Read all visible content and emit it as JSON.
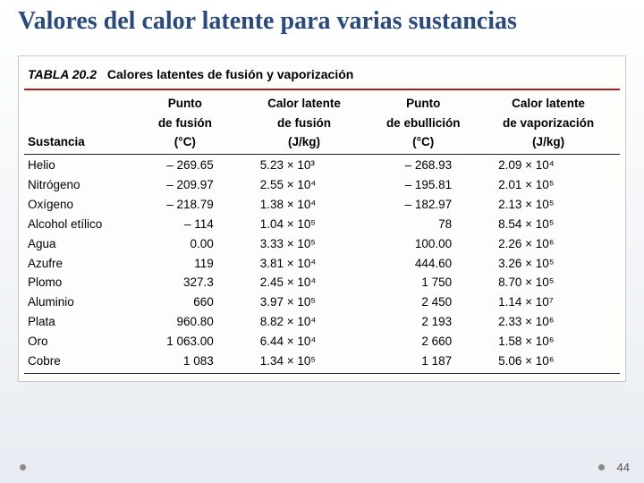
{
  "title": "Valores del calor latente para varias sustancias",
  "tabla": {
    "label_prefix": "TABLA 20.2",
    "label_text": "Calores latentes de fusión y vaporización",
    "columns": {
      "sustancia": "Sustancia",
      "pf1": "Punto",
      "pf2": "de fusión",
      "pf3": "(°C)",
      "lf1": "Calor latente",
      "lf2": "de fusión",
      "lf3": "(J/kg)",
      "pe1": "Punto",
      "pe2": "de ebullición",
      "pe3": "(°C)",
      "lv1": "Calor latente",
      "lv2": "de vaporización",
      "lv3": "(J/kg)"
    },
    "rows": [
      {
        "s": "Helio",
        "pf": "– 269.65",
        "lf": "5.23 × 10³",
        "pe": "– 268.93",
        "lv": "2.09 × 10⁴"
      },
      {
        "s": "Nitrógeno",
        "pf": "– 209.97",
        "lf": "2.55 × 10⁴",
        "pe": "– 195.81",
        "lv": "2.01 × 10⁵"
      },
      {
        "s": "Oxígeno",
        "pf": "– 218.79",
        "lf": "1.38 × 10⁴",
        "pe": "– 182.97",
        "lv": "2.13 × 10⁵"
      },
      {
        "s": "Alcohol etílico",
        "pf": "– 114",
        "lf": "1.04 × 10⁵",
        "pe": "78",
        "lv": "8.54 × 10⁵"
      },
      {
        "s": "Agua",
        "pf": "0.00",
        "lf": "3.33 × 10⁵",
        "pe": "100.00",
        "lv": "2.26 × 10⁶"
      },
      {
        "s": "Azufre",
        "pf": "119",
        "lf": "3.81 × 10⁴",
        "pe": "444.60",
        "lv": "3.26 × 10⁵"
      },
      {
        "s": "Plomo",
        "pf": "327.3",
        "lf": "2.45 × 10⁴",
        "pe": "1 750",
        "lv": "8.70 × 10⁵"
      },
      {
        "s": "Aluminio",
        "pf": "660",
        "lf": "3.97 × 10⁵",
        "pe": "2 450",
        "lv": "1.14 × 10⁷"
      },
      {
        "s": "Plata",
        "pf": "960.80",
        "lf": "8.82 × 10⁴",
        "pe": "2 193",
        "lv": "2.33 × 10⁶"
      },
      {
        "s": "Oro",
        "pf": "1 063.00",
        "lf": "6.44 × 10⁴",
        "pe": "2 660",
        "lv": "1.58 × 10⁶"
      },
      {
        "s": "Cobre",
        "pf": "1 083",
        "lf": "1.34 × 10⁵",
        "pe": "1 187",
        "lv": "5.06 × 10⁶"
      }
    ]
  },
  "page_number": "44"
}
